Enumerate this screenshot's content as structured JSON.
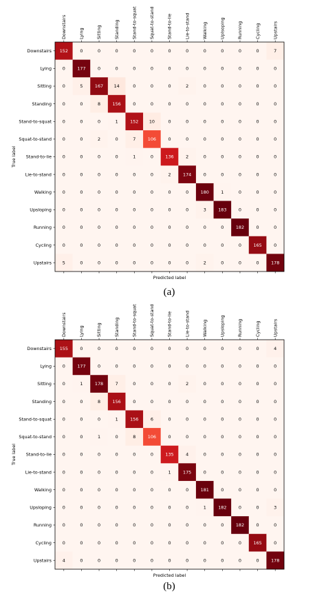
{
  "figure": {
    "captions": [
      "(a)",
      "(b)"
    ]
  },
  "chart_data": [
    {
      "type": "heatmap",
      "title": "",
      "xlabel": "Predicted label",
      "ylabel": "True label",
      "x_categories": [
        "Downstairs",
        "Lying",
        "Sitting",
        "Standing",
        "Stand-to-squat",
        "Squat-to-stand",
        "Stand-to-lie",
        "Lie-to-stand",
        "Walking",
        "Uplsoping",
        "Running",
        "Cycling",
        "Upstairs"
      ],
      "y_categories": [
        "Downstairs",
        "Lying",
        "Sitting",
        "Standing",
        "Stand-to-squat",
        "Squat-to-stand",
        "Stand-to-lie",
        "Lie-to-stand",
        "Walking",
        "Upsloping",
        "Running",
        "Cycling",
        "Upstairs"
      ],
      "colormap": "Reds",
      "color_range": [
        0,
        182
      ],
      "matrix": [
        [
          152,
          0,
          0,
          0,
          0,
          0,
          0,
          0,
          0,
          0,
          0,
          0,
          7
        ],
        [
          0,
          177,
          0,
          0,
          0,
          0,
          0,
          0,
          0,
          0,
          0,
          0,
          0
        ],
        [
          0,
          5,
          167,
          14,
          0,
          0,
          0,
          2,
          0,
          0,
          0,
          0,
          0
        ],
        [
          0,
          0,
          8,
          156,
          0,
          0,
          0,
          0,
          0,
          0,
          0,
          0,
          0
        ],
        [
          0,
          0,
          0,
          1,
          152,
          10,
          0,
          0,
          0,
          0,
          0,
          0,
          0
        ],
        [
          0,
          0,
          2,
          0,
          7,
          106,
          0,
          0,
          0,
          0,
          0,
          0,
          0
        ],
        [
          0,
          0,
          0,
          0,
          1,
          0,
          136,
          2,
          0,
          0,
          0,
          0,
          0
        ],
        [
          0,
          0,
          0,
          0,
          0,
          0,
          2,
          174,
          0,
          0,
          0,
          0,
          0
        ],
        [
          0,
          0,
          0,
          0,
          0,
          0,
          0,
          0,
          180,
          1,
          0,
          0,
          0
        ],
        [
          0,
          0,
          0,
          0,
          0,
          0,
          0,
          0,
          3,
          183,
          0,
          0,
          0
        ],
        [
          0,
          0,
          0,
          0,
          0,
          0,
          0,
          0,
          0,
          0,
          182,
          0,
          0
        ],
        [
          0,
          0,
          0,
          0,
          0,
          0,
          0,
          0,
          0,
          0,
          0,
          165,
          0
        ],
        [
          5,
          0,
          0,
          0,
          0,
          0,
          0,
          0,
          2,
          0,
          0,
          0,
          178
        ]
      ]
    },
    {
      "type": "heatmap",
      "title": "",
      "xlabel": "Predicted label",
      "ylabel": "True label",
      "x_categories": [
        "Downstairs",
        "Lying",
        "Sitting",
        "Standing",
        "Stand-to-squat",
        "Squat-to-stand",
        "Stand-to-lie",
        "Lie-to-stand",
        "Walking",
        "Upsloping",
        "Running",
        "Cycling",
        "Upstairs"
      ],
      "y_categories": [
        "Downstairs",
        "Lying",
        "Sitting",
        "Standing",
        "Stand-to-squat",
        "Squat-to-stand",
        "Stand-to-lie",
        "Lie-to-stand",
        "Walking",
        "Upsloping",
        "Running",
        "Cycling",
        "Upstairs"
      ],
      "colormap": "Reds",
      "color_range": [
        0,
        182
      ],
      "matrix": [
        [
          155,
          0,
          0,
          0,
          0,
          0,
          0,
          0,
          0,
          0,
          0,
          0,
          4
        ],
        [
          0,
          177,
          0,
          0,
          0,
          0,
          0,
          0,
          0,
          0,
          0,
          0,
          0
        ],
        [
          0,
          1,
          178,
          7,
          0,
          0,
          0,
          2,
          0,
          0,
          0,
          0,
          0
        ],
        [
          0,
          0,
          8,
          156,
          0,
          0,
          0,
          0,
          0,
          0,
          0,
          0,
          0
        ],
        [
          0,
          0,
          0,
          1,
          156,
          6,
          0,
          0,
          0,
          0,
          0,
          0,
          0
        ],
        [
          0,
          0,
          1,
          0,
          8,
          106,
          0,
          0,
          0,
          0,
          0,
          0,
          0
        ],
        [
          0,
          0,
          0,
          0,
          0,
          0,
          135,
          4,
          0,
          0,
          0,
          0,
          0
        ],
        [
          0,
          0,
          0,
          0,
          0,
          0,
          1,
          175,
          0,
          0,
          0,
          0,
          0
        ],
        [
          0,
          0,
          0,
          0,
          0,
          0,
          0,
          0,
          181,
          0,
          0,
          0,
          0
        ],
        [
          0,
          0,
          0,
          0,
          0,
          0,
          0,
          0,
          1,
          182,
          0,
          0,
          3
        ],
        [
          0,
          0,
          0,
          0,
          0,
          0,
          0,
          0,
          0,
          0,
          182,
          0,
          0
        ],
        [
          0,
          0,
          0,
          0,
          0,
          0,
          0,
          0,
          0,
          0,
          0,
          165,
          0
        ],
        [
          4,
          0,
          0,
          0,
          0,
          0,
          0,
          0,
          0,
          0,
          0,
          0,
          178
        ]
      ]
    }
  ]
}
